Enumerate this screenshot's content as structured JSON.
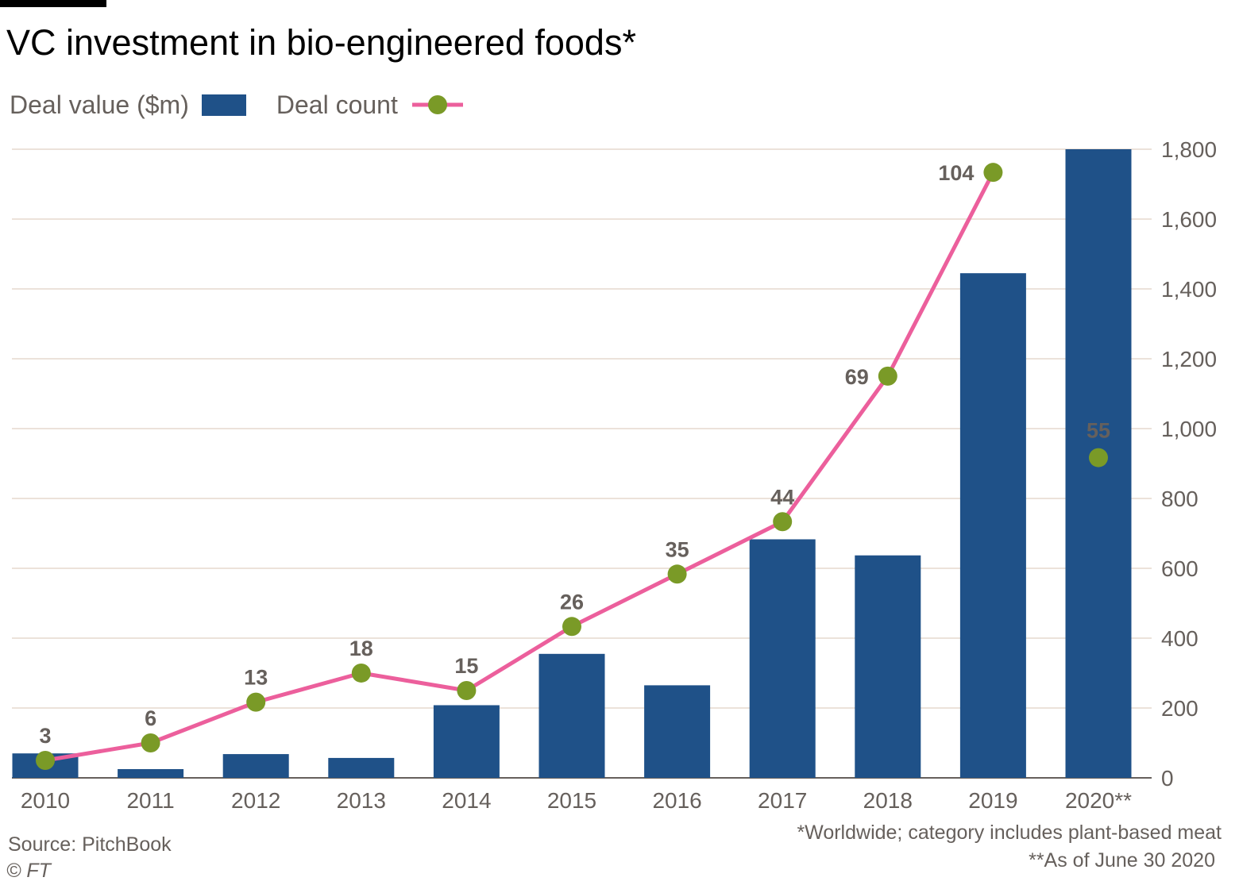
{
  "chart_data": {
    "type": "bar",
    "title": "VC investment in bio-engineered foods*",
    "categories": [
      "2010",
      "2011",
      "2012",
      "2013",
      "2014",
      "2015",
      "2016",
      "2017",
      "2018",
      "2019",
      "2020**"
    ],
    "series": [
      {
        "name": "Deal value ($m)",
        "kind": "bar",
        "axis": "right",
        "color": "#1f5188",
        "values": [
          70,
          25,
          68,
          57,
          208,
          355,
          265,
          683,
          637,
          1445,
          1800
        ]
      },
      {
        "name": "Deal count",
        "kind": "line",
        "color": "#ec5f9c",
        "marker_color": "#7a9a27",
        "values": [
          3,
          6,
          13,
          18,
          15,
          26,
          35,
          44,
          69,
          104,
          55
        ],
        "labels": [
          "3",
          "6",
          "13",
          "18",
          "15",
          "26",
          "35",
          "44",
          "69",
          "104",
          "55"
        ]
      }
    ],
    "y_axis": {
      "position": "right",
      "ylim": [
        0,
        1800
      ],
      "ticks": [
        0,
        200,
        400,
        600,
        800,
        1000,
        1200,
        1400,
        1600,
        1800
      ],
      "tick_labels": [
        "0",
        "200",
        "400",
        "600",
        "800",
        "1,000",
        "1,200",
        "1,400",
        "1,600",
        "1,800"
      ]
    },
    "gridlines": true,
    "legend": {
      "placement": "top-left",
      "bar_label": "Deal value ($m)",
      "line_label": "Deal count"
    },
    "source": "Source: PitchBook",
    "copyright": "© FT",
    "footnotes": [
      "*Worldwide; category includes plant-based meat",
      "**As of June 30 2020"
    ]
  }
}
